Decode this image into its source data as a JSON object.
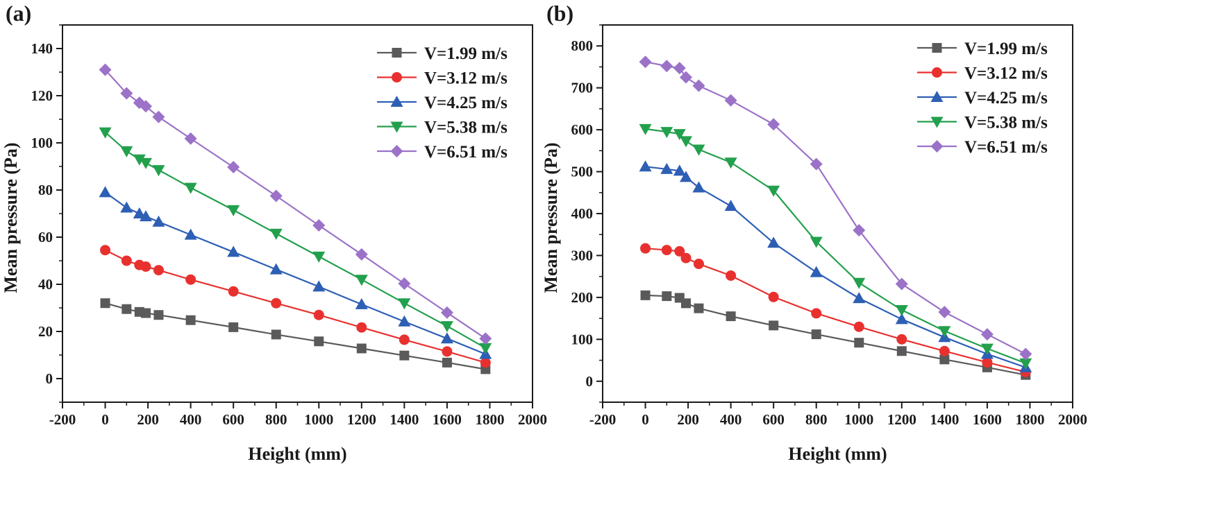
{
  "figure": {
    "panels": [
      "(a)",
      "(b)"
    ]
  },
  "chart_data": [
    {
      "panel": "(a)",
      "type": "line",
      "title": "",
      "xlabel": "Height (mm)",
      "ylabel": "Mean pressure (Pa)",
      "xlim": [
        -200,
        2000
      ],
      "ylim": [
        -10,
        150
      ],
      "xticks": [
        -200,
        0,
        200,
        400,
        600,
        800,
        1000,
        1200,
        1400,
        1600,
        1800,
        2000
      ],
      "yticks": [
        0,
        20,
        40,
        60,
        80,
        100,
        120,
        140
      ],
      "legend_position": "top-right",
      "x": [
        0,
        100,
        160,
        190,
        250,
        400,
        600,
        800,
        1000,
        1200,
        1400,
        1600,
        1780
      ],
      "series": [
        {
          "name": "V=1.99 m/s",
          "color": "#5a5a5a",
          "marker": "square",
          "values": [
            32,
            29.5,
            28.3,
            27.8,
            27,
            24.8,
            21.8,
            18.7,
            15.8,
            12.8,
            9.8,
            6.8,
            4
          ]
        },
        {
          "name": "V=3.12 m/s",
          "color": "#e8312f",
          "marker": "circle",
          "values": [
            54.5,
            50,
            48.2,
            47.5,
            46,
            42,
            37,
            32,
            27,
            21.7,
            16.5,
            11.5,
            6.8
          ]
        },
        {
          "name": "V=4.25 m/s",
          "color": "#2d5fb4",
          "marker": "triangle-up",
          "values": [
            79,
            72.5,
            70,
            68.8,
            66.5,
            61,
            53.7,
            46.3,
            39,
            31.5,
            24.2,
            17,
            10.4
          ]
        },
        {
          "name": "V=5.38 m/s",
          "color": "#23a04d",
          "marker": "triangle-down",
          "values": [
            104.5,
            96.5,
            93,
            91.5,
            88.5,
            81,
            71.5,
            61.5,
            51.8,
            42,
            32,
            22.3,
            13
          ]
        },
        {
          "name": "V=6.51 m/s",
          "color": "#9b72c8",
          "marker": "diamond",
          "values": [
            131,
            121,
            117,
            115.5,
            111,
            101.8,
            89.7,
            77.5,
            65,
            52.7,
            40.3,
            28,
            17
          ]
        }
      ]
    },
    {
      "panel": "(b)",
      "type": "line",
      "title": "",
      "xlabel": "Height (mm)",
      "ylabel": "Mean pressure (Pa)",
      "xlim": [
        -200,
        2000
      ],
      "ylim": [
        -50,
        850
      ],
      "xticks": [
        -200,
        0,
        200,
        400,
        600,
        800,
        1000,
        1200,
        1400,
        1600,
        1800,
        2000
      ],
      "yticks": [
        0,
        100,
        200,
        300,
        400,
        500,
        600,
        700,
        800
      ],
      "legend_position": "top-right",
      "x": [
        0,
        100,
        160,
        190,
        250,
        400,
        600,
        800,
        1000,
        1200,
        1400,
        1600,
        1780
      ],
      "series": [
        {
          "name": "V=1.99 m/s",
          "color": "#5a5a5a",
          "marker": "square",
          "values": [
            205,
            203,
            199,
            186,
            174,
            155,
            133,
            112,
            92,
            72,
            52,
            33,
            15
          ]
        },
        {
          "name": "V=3.12 m/s",
          "color": "#e8312f",
          "marker": "circle",
          "values": [
            317,
            313,
            310,
            294,
            280,
            252,
            201,
            162,
            130,
            100,
            72,
            45,
            22
          ]
        },
        {
          "name": "V=4.25 m/s",
          "color": "#2d5fb4",
          "marker": "triangle-up",
          "values": [
            512,
            506,
            502,
            487,
            462,
            418,
            330,
            260,
            198,
            148,
            105,
            65,
            33
          ]
        },
        {
          "name": "V=5.38 m/s",
          "color": "#23a04d",
          "marker": "triangle-down",
          "values": [
            602,
            595,
            590,
            573,
            553,
            522,
            455,
            333,
            235,
            170,
            120,
            78,
            43
          ]
        },
        {
          "name": "V=6.51 m/s",
          "color": "#9b72c8",
          "marker": "diamond",
          "values": [
            762,
            752,
            747,
            725,
            705,
            670,
            613,
            518,
            360,
            232,
            165,
            112,
            65
          ]
        }
      ]
    }
  ]
}
